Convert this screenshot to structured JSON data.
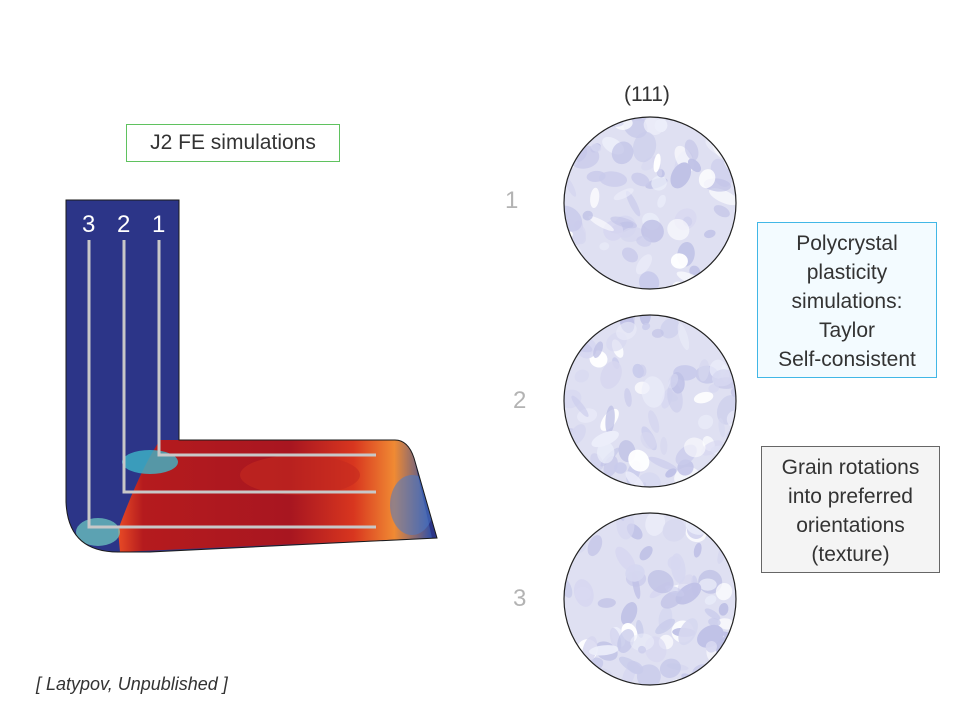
{
  "fe_box": {
    "label": "J2 FE simulations"
  },
  "channels": [
    "3",
    "2",
    "1"
  ],
  "pole_figure": {
    "label": "(111)"
  },
  "numbers": [
    "1",
    "2",
    "3"
  ],
  "polycrystal_box": {
    "lines": [
      "Polycrystal",
      "plasticity",
      "simulations:",
      "Taylor",
      "Self-consistent"
    ]
  },
  "grain_box": {
    "lines": [
      "Grain rotations",
      "into preferred",
      "orientations",
      "(texture)"
    ]
  },
  "citation": "[ Latypov, Unpublished ]",
  "colors": {
    "die_blue": "#2c3588",
    "strain_red": "#b01a1f",
    "path_gray": "#c8c8c8",
    "pole_fill": "#dfe0f2",
    "fe_border": "#5fc25f",
    "pc_border": "#41b7e6"
  }
}
